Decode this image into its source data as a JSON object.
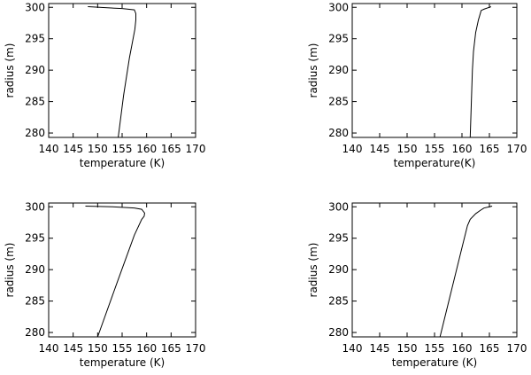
{
  "chart_data": [
    {
      "type": "line",
      "xlabel": "temperature (K)",
      "ylabel": "radius (m)",
      "xlim": [
        140,
        170
      ],
      "ylim": [
        279.3,
        300.6
      ],
      "xticks": [
        "140",
        "145",
        "150",
        "155",
        "160",
        "165",
        "170"
      ],
      "yticks": [
        "280",
        "285",
        "290",
        "295",
        "300"
      ],
      "series": [
        {
          "x": [
            148.0,
            155.0,
            157.5,
            157.8,
            157.8,
            157.6,
            156.5,
            155.3,
            154.2
          ],
          "y": [
            300.1,
            299.8,
            299.6,
            299.0,
            298.0,
            296.5,
            292.0,
            286.0,
            279.3
          ]
        }
      ]
    },
    {
      "type": "line",
      "xlabel": "temperature(K)",
      "ylabel": "radius (m)",
      "xlim": [
        140,
        170
      ],
      "ylim": [
        279.3,
        300.6
      ],
      "xticks": [
        "140",
        "145",
        "150",
        "155",
        "160",
        "165",
        "170"
      ],
      "yticks": [
        "280",
        "285",
        "290",
        "295",
        "300"
      ],
      "series": [
        {
          "x": [
            165.3,
            164.0,
            163.5,
            163.0,
            162.5,
            162.1,
            161.9,
            161.5
          ],
          "y": [
            300.1,
            299.7,
            299.5,
            298.0,
            296.0,
            293.0,
            290.0,
            279.3
          ]
        }
      ]
    },
    {
      "type": "line",
      "xlabel": "temperature (K)",
      "ylabel": "radius (m)",
      "xlim": [
        140,
        170
      ],
      "ylim": [
        279.3,
        300.6
      ],
      "xticks": [
        "140",
        "145",
        "150",
        "155",
        "160",
        "165",
        "170"
      ],
      "yticks": [
        "280",
        "285",
        "290",
        "295",
        "300"
      ],
      "series": [
        {
          "x": [
            147.5,
            153.0,
            157.5,
            159.0,
            159.6,
            159.5,
            159.0,
            157.5,
            154.0,
            150.0
          ],
          "y": [
            300.1,
            300.0,
            299.8,
            299.6,
            299.0,
            298.5,
            298.0,
            295.5,
            288.0,
            279.3
          ]
        }
      ]
    },
    {
      "type": "line",
      "xlabel": "temperature (K)",
      "ylabel": "radius (m)",
      "xlim": [
        140,
        170
      ],
      "ylim": [
        279.3,
        300.6
      ],
      "xticks": [
        "140",
        "145",
        "150",
        "155",
        "160",
        "165",
        "170"
      ],
      "yticks": [
        "280",
        "285",
        "290",
        "295",
        "300"
      ],
      "series": [
        {
          "x": [
            165.5,
            164.0,
            163.3,
            162.5,
            161.5,
            161.0,
            160.0,
            156.0
          ],
          "y": [
            300.1,
            299.8,
            299.4,
            298.9,
            298.0,
            297.0,
            293.5,
            279.3
          ]
        }
      ]
    }
  ]
}
